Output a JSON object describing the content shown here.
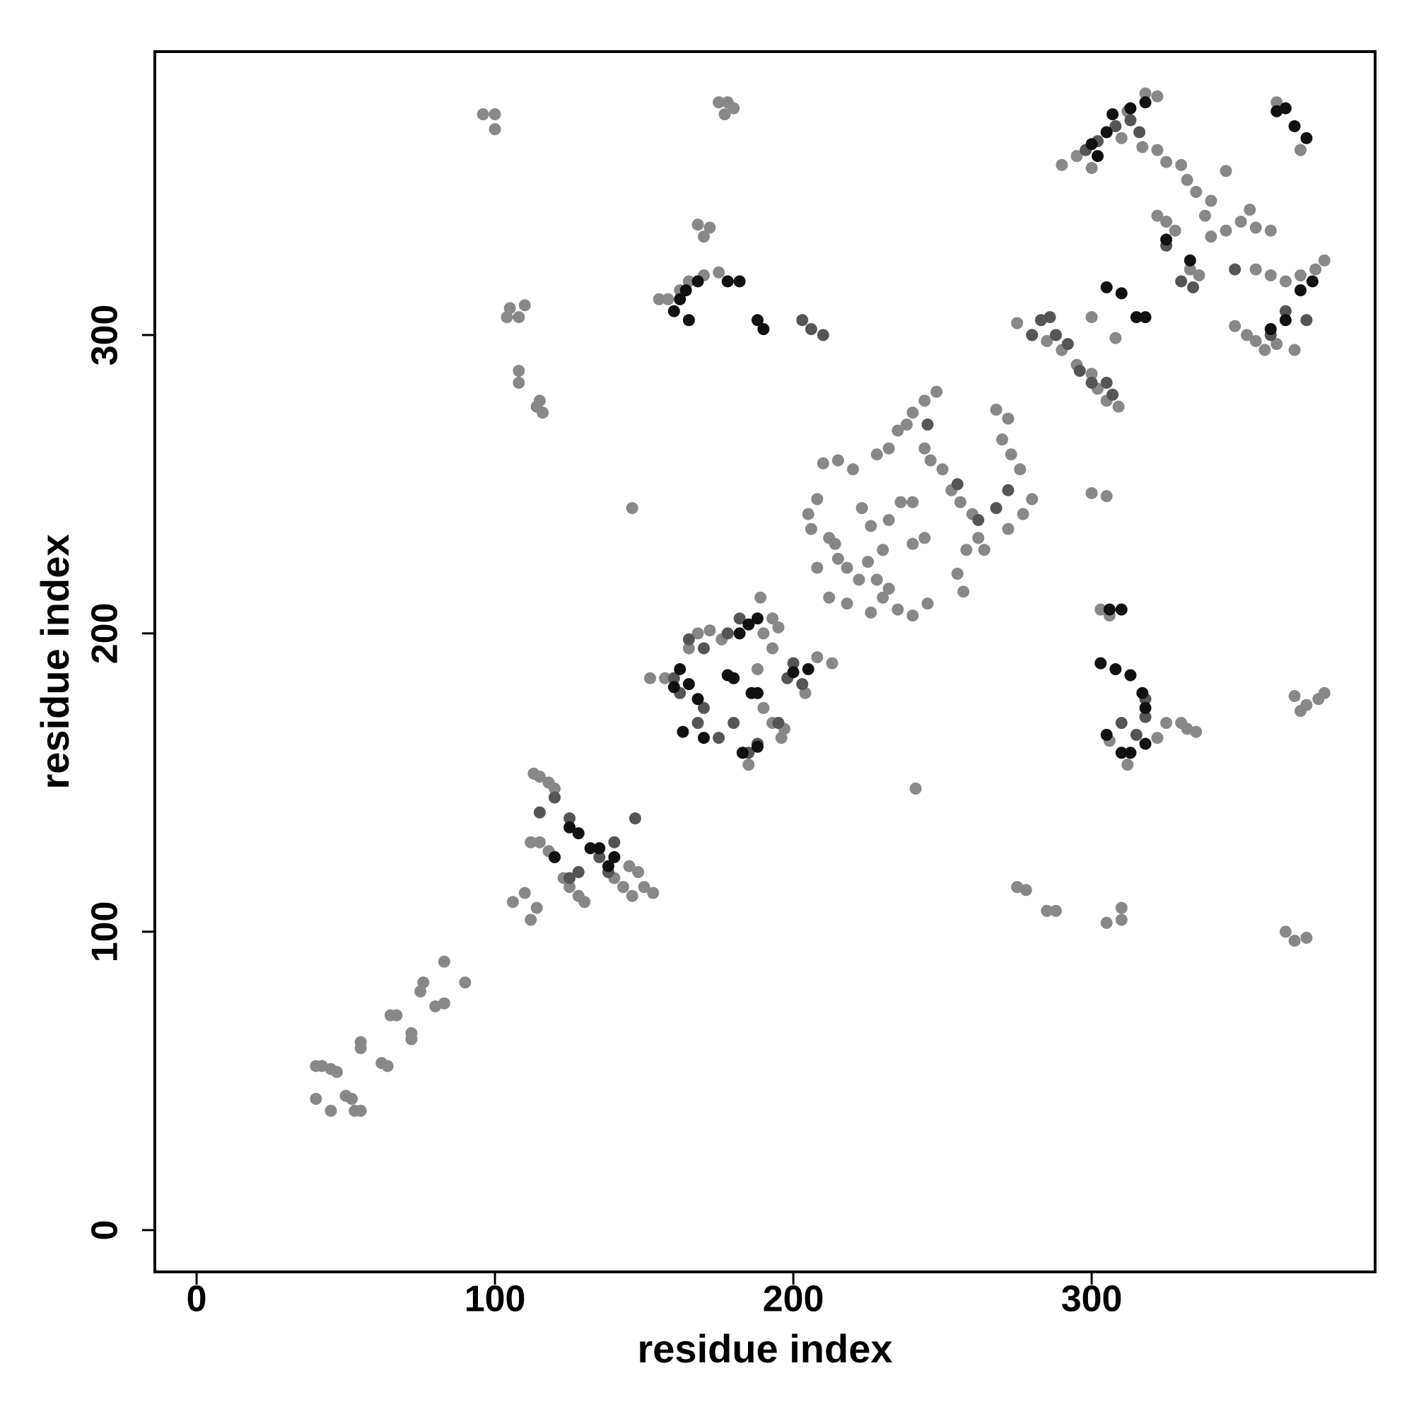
{
  "chart_data": {
    "type": "scatter",
    "xlabel": "residue index",
    "ylabel": "residue index",
    "xlim": [
      -14,
      395
    ],
    "ylim": [
      -14,
      395
    ],
    "xticks": [
      0,
      100,
      200,
      300
    ],
    "yticks": [
      0,
      100,
      200,
      300
    ],
    "series": [
      {
        "color": "#888888",
        "x": [
          40,
          42,
          45,
          47,
          40,
          45,
          50,
          52,
          53,
          55,
          55,
          55,
          62,
          64,
          65,
          67,
          72,
          72,
          75,
          76,
          80,
          83,
          83,
          90,
          96,
          100,
          100,
          104,
          105,
          108,
          110,
          108,
          108,
          114,
          116,
          115,
          146,
          113,
          115,
          118,
          120,
          112,
          115,
          118,
          120,
          123,
          125,
          128,
          130,
          140,
          143,
          146,
          150,
          153,
          145,
          148,
          106,
          110,
          112,
          114,
          175,
          178,
          180,
          177,
          168,
          170,
          172,
          175,
          170,
          165,
          158,
          155,
          162,
          152,
          157,
          165,
          168,
          172,
          176,
          190,
          193,
          195,
          189,
          193,
          188,
          190,
          193,
          197,
          196,
          185,
          208,
          213,
          204,
          205,
          208,
          206,
          212,
          214,
          215,
          218,
          222,
          208,
          212,
          218,
          226,
          230,
          235,
          240,
          245,
          228,
          232,
          235,
          238,
          240,
          244,
          248,
          246,
          250,
          253,
          256,
          260,
          262,
          264,
          258,
          268,
          272,
          270,
          273,
          276,
          280,
          277,
          272,
          232,
          236,
          240,
          244,
          223,
          226,
          230,
          210,
          215,
          220,
          255,
          257,
          240,
          225,
          228,
          232,
          244,
          275,
          278,
          285,
          288,
          300,
          305,
          303,
          306,
          305,
          310,
          310,
          241,
          275,
          280,
          285,
          290,
          295,
          300,
          302,
          305,
          309,
          300,
          308,
          330,
          332,
          335,
          370,
          372,
          368,
          365,
          368,
          372,
          362,
          370,
          290,
          295,
          300,
          305,
          310,
          312,
          318,
          322,
          317,
          322,
          325,
          322,
          325,
          328,
          330,
          332,
          335,
          338,
          340,
          345,
          340,
          345,
          350,
          353,
          355,
          360,
          333,
          336,
          348,
          352,
          355,
          358,
          362,
          368,
          355,
          360,
          365,
          370,
          375,
          378,
          312,
          322,
          325,
          306,
          376,
          378
        ],
        "values": [
          55,
          55,
          54,
          53,
          44,
          40,
          45,
          44,
          40,
          40,
          63,
          61,
          56,
          55,
          72,
          72,
          66,
          64,
          80,
          83,
          75,
          76,
          90,
          83,
          374,
          374,
          369,
          306,
          309,
          306,
          310,
          288,
          284,
          276,
          274,
          278,
          242,
          153,
          152,
          150,
          148,
          130,
          130,
          127,
          125,
          118,
          115,
          112,
          110,
          118,
          115,
          112,
          115,
          113,
          122,
          120,
          110,
          113,
          104,
          108,
          378,
          378,
          376,
          374,
          337,
          333,
          336,
          321,
          320,
          318,
          312,
          312,
          315,
          185,
          185,
          195,
          200,
          201,
          198,
          200,
          205,
          202,
          212,
          195,
          188,
          175,
          170,
          168,
          165,
          156,
          192,
          190,
          180,
          240,
          245,
          235,
          232,
          230,
          225,
          222,
          218,
          222,
          212,
          210,
          207,
          212,
          208,
          206,
          210,
          260,
          262,
          268,
          270,
          274,
          278,
          281,
          258,
          255,
          248,
          244,
          240,
          232,
          228,
          228,
          275,
          272,
          265,
          260,
          255,
          245,
          240,
          235,
          238,
          244,
          230,
          232,
          242,
          236,
          228,
          257,
          258,
          255,
          220,
          214,
          244,
          224,
          218,
          215,
          262,
          115,
          114,
          107,
          107,
          247,
          246,
          208,
          206,
          103,
          104,
          108,
          148,
          304,
          300,
          298,
          295,
          290,
          287,
          282,
          278,
          276,
          306,
          299,
          170,
          168,
          167,
          174,
          176,
          179,
          100,
          97,
          98,
          378,
          362,
          357,
          360,
          356,
          368,
          366,
          375,
          381,
          380,
          363,
          362,
          358,
          340,
          338,
          335,
          357,
          352,
          348,
          340,
          345,
          355,
          333,
          335,
          338,
          342,
          336,
          335,
          322,
          320,
          303,
          300,
          298,
          295,
          297,
          295,
          322,
          320,
          318,
          320,
          322,
          325,
          156,
          165,
          170,
          164,
          178,
          180
        ]
      },
      {
        "color": "#555555",
        "x": [
          115,
          120,
          125,
          138,
          135,
          140,
          147,
          125,
          128,
          160,
          162,
          168,
          170,
          175,
          180,
          165,
          170,
          178,
          182,
          198,
          200,
          203,
          185,
          188,
          195,
          280,
          283,
          286,
          288,
          292,
          296,
          300,
          305,
          307,
          203,
          206,
          210,
          245,
          255,
          262,
          268,
          272,
          315,
          318,
          318,
          310,
          330,
          334,
          325,
          360,
          365,
          372,
          298,
          302,
          308,
          313,
          316,
          348
        ],
        "values": [
          140,
          145,
          138,
          120,
          125,
          130,
          138,
          118,
          120,
          185,
          180,
          170,
          175,
          165,
          170,
          198,
          195,
          200,
          205,
          185,
          190,
          183,
          160,
          163,
          170,
          300,
          305,
          306,
          300,
          297,
          288,
          284,
          284,
          280,
          305,
          302,
          300,
          270,
          250,
          238,
          242,
          248,
          166,
          172,
          178,
          170,
          318,
          316,
          330,
          300,
          308,
          305,
          362,
          365,
          370,
          372,
          368,
          322
        ]
      },
      {
        "color": "#111111",
        "x": [
          120,
          125,
          128,
          132,
          135,
          140,
          138,
          160,
          162,
          165,
          168,
          163,
          170,
          180,
          188,
          182,
          185,
          188,
          183,
          188,
          200,
          205,
          162,
          164,
          168,
          160,
          165,
          178,
          182,
          188,
          190,
          305,
          310,
          313,
          318,
          303,
          308,
          313,
          317,
          318,
          306,
          310,
          305,
          310,
          315,
          318,
          300,
          302,
          305,
          307,
          313,
          318,
          325,
          333,
          360,
          365,
          370,
          374,
          368,
          372,
          365,
          362,
          178,
          186
        ],
        "values": [
          125,
          135,
          133,
          128,
          128,
          125,
          122,
          182,
          188,
          183,
          178,
          167,
          165,
          185,
          180,
          200,
          203,
          205,
          160,
          162,
          187,
          188,
          312,
          315,
          318,
          308,
          305,
          318,
          318,
          305,
          302,
          166,
          160,
          160,
          163,
          190,
          188,
          186,
          180,
          175,
          208,
          208,
          316,
          314,
          306,
          306,
          364,
          360,
          368,
          374,
          376,
          378,
          332,
          325,
          302,
          305,
          315,
          318,
          370,
          366,
          376,
          375,
          186,
          180
        ]
      }
    ]
  }
}
